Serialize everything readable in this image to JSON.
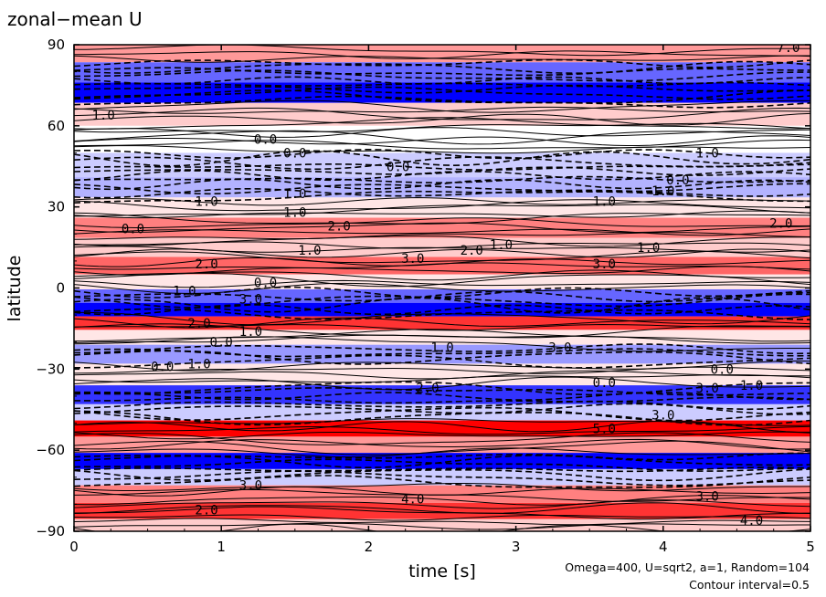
{
  "chart_data": {
    "type": "heatmap",
    "title": "zonal−mean U",
    "xlabel": "time [s]",
    "ylabel": "latitude",
    "xlim": [
      0,
      5
    ],
    "ylim": [
      -90,
      90
    ],
    "x_ticks": [
      0,
      1,
      2,
      3,
      4,
      5
    ],
    "x_tick_labels": [
      "0",
      "1",
      "2",
      "3",
      "4",
      "5"
    ],
    "y_ticks": [
      90,
      60,
      30,
      0,
      -30,
      -60,
      -90
    ],
    "y_tick_labels": [
      "90",
      "60",
      "30",
      "0",
      "−30",
      "−60",
      "−90"
    ],
    "grid": false,
    "colors": {
      "positive": "#ff0000",
      "negative": "#0000ff",
      "zero": "#ffffff",
      "contour": "#000000"
    },
    "annotations": [
      "Omega=400, U=sqrt2, a=1, Random=104",
      "Contour interval=0.5"
    ],
    "contour_interval": 0.5,
    "bands": [
      {
        "lat": 87,
        "value": 2.0
      },
      {
        "lat": 80,
        "value": -3.0
      },
      {
        "lat": 72,
        "value": -5.0
      },
      {
        "lat": 65,
        "value": 1.0
      },
      {
        "lat": 55,
        "value": 0.0
      },
      {
        "lat": 45,
        "value": -1.0
      },
      {
        "lat": 37,
        "value": -1.5
      },
      {
        "lat": 30,
        "value": 0.5
      },
      {
        "lat": 22,
        "value": 2.5
      },
      {
        "lat": 15,
        "value": 1.0
      },
      {
        "lat": 8,
        "value": 3.0
      },
      {
        "lat": 2,
        "value": 0.5
      },
      {
        "lat": -3,
        "value": -3.0
      },
      {
        "lat": -8,
        "value": -5.0
      },
      {
        "lat": -13,
        "value": 4.0
      },
      {
        "lat": -18,
        "value": 0.5
      },
      {
        "lat": -24,
        "value": -2.0
      },
      {
        "lat": -32,
        "value": 0.5
      },
      {
        "lat": -40,
        "value": -4.0
      },
      {
        "lat": -46,
        "value": -1.0
      },
      {
        "lat": -52,
        "value": 6.0
      },
      {
        "lat": -58,
        "value": 2.0
      },
      {
        "lat": -64,
        "value": -6.0
      },
      {
        "lat": -70,
        "value": -1.0
      },
      {
        "lat": -76,
        "value": 2.5
      },
      {
        "lat": -83,
        "value": 4.0
      },
      {
        "lat": -88,
        "value": 1.0
      }
    ],
    "contour_labels": [
      {
        "t": 0.2,
        "lat": 64,
        "text": "1.0"
      },
      {
        "t": 1.3,
        "lat": 55,
        "text": "0.0"
      },
      {
        "t": 1.5,
        "lat": 50,
        "text": "0.0"
      },
      {
        "t": 2.2,
        "lat": 45,
        "text": "0.0"
      },
      {
        "t": 1.5,
        "lat": 35,
        "text": "1.0"
      },
      {
        "t": 0.9,
        "lat": 32,
        "text": "1.0"
      },
      {
        "t": 1.5,
        "lat": 28,
        "text": "1.0"
      },
      {
        "t": 0.4,
        "lat": 22,
        "text": "0.0"
      },
      {
        "t": 1.8,
        "lat": 23,
        "text": "2.0"
      },
      {
        "t": 1.6,
        "lat": 14,
        "text": "1.0"
      },
      {
        "t": 0.9,
        "lat": 9,
        "text": "2.0"
      },
      {
        "t": 2.3,
        "lat": 11,
        "text": "3.0"
      },
      {
        "t": 2.7,
        "lat": 14,
        "text": "2.0"
      },
      {
        "t": 2.9,
        "lat": 16,
        "text": "1.0"
      },
      {
        "t": 3.6,
        "lat": 32,
        "text": "1.0"
      },
      {
        "t": 4.3,
        "lat": 50,
        "text": "1.0"
      },
      {
        "t": 4.1,
        "lat": 40,
        "text": "0.0"
      },
      {
        "t": 4.0,
        "lat": 36,
        "text": "1.0"
      },
      {
        "t": 4.8,
        "lat": 24,
        "text": "2.0"
      },
      {
        "t": 3.9,
        "lat": 15,
        "text": "1.0"
      },
      {
        "t": 3.6,
        "lat": 9,
        "text": "3.0"
      },
      {
        "t": 1.3,
        "lat": 2,
        "text": "0.0"
      },
      {
        "t": 0.75,
        "lat": -1,
        "text": "1.0"
      },
      {
        "t": 1.2,
        "lat": -4,
        "text": "3.0"
      },
      {
        "t": 0.85,
        "lat": -13,
        "text": "2.0"
      },
      {
        "t": 1.2,
        "lat": -16,
        "text": "1.0"
      },
      {
        "t": 1.0,
        "lat": -20,
        "text": "0.0"
      },
      {
        "t": 2.5,
        "lat": -22,
        "text": "1.0"
      },
      {
        "t": 3.3,
        "lat": -22,
        "text": "3.0"
      },
      {
        "t": 0.6,
        "lat": -29,
        "text": "0.0"
      },
      {
        "t": 0.85,
        "lat": -28,
        "text": "1.0"
      },
      {
        "t": 2.4,
        "lat": -37,
        "text": "2.0"
      },
      {
        "t": 4.4,
        "lat": -30,
        "text": "0.0"
      },
      {
        "t": 3.6,
        "lat": -35,
        "text": "0.0"
      },
      {
        "t": 4.3,
        "lat": -37,
        "text": "3.0"
      },
      {
        "t": 4.6,
        "lat": -36,
        "text": "1.0"
      },
      {
        "t": 3.6,
        "lat": -52,
        "text": "5.0"
      },
      {
        "t": 4.0,
        "lat": -47,
        "text": "3.0"
      },
      {
        "t": 2.3,
        "lat": -78,
        "text": "4.0"
      },
      {
        "t": 0.9,
        "lat": -82,
        "text": "2.0"
      },
      {
        "t": 1.2,
        "lat": -73,
        "text": "3.0"
      },
      {
        "t": 4.3,
        "lat": -77,
        "text": "3.0"
      },
      {
        "t": 4.6,
        "lat": -86,
        "text": "4.0"
      },
      {
        "t": 4.85,
        "lat": 89,
        "text": "7.0"
      }
    ]
  }
}
